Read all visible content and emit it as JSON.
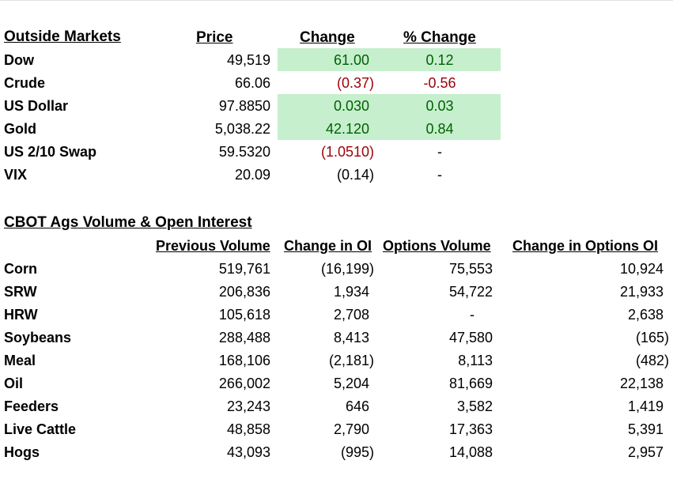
{
  "colors": {
    "positive_fill": "#c6efce",
    "positive_text": "#006100",
    "negative_text": "#9c0006"
  },
  "outside": {
    "title": "Outside Markets",
    "headers": {
      "price": "Price",
      "change": "Change",
      "pct": "% Change"
    },
    "rows": [
      {
        "name": "Dow",
        "price": "49,519",
        "change": "61.00",
        "pct": "0.12"
      },
      {
        "name": "Crude",
        "price": "66.06",
        "change": "(0.37)",
        "pct": "-0.56"
      },
      {
        "name": "US Dollar",
        "price": "97.8850",
        "change": "0.030",
        "pct": "0.03"
      },
      {
        "name": "Gold",
        "price": "5,038.22",
        "change": "42.120",
        "pct": "0.84"
      },
      {
        "name": "US 2/10 Swap",
        "price": "59.5320",
        "change": "(1.0510)",
        "pct": "-"
      },
      {
        "name": "VIX",
        "price": "20.09",
        "change": "(0.14)",
        "pct": "-"
      }
    ]
  },
  "cbot": {
    "title": "CBOT Ags Volume & Open Interest",
    "headers": {
      "prev_vol": "Previous Volume",
      "chg_oi": "Change in OI",
      "opt_vol": "Options Volume",
      "chg_opt_oi": "Change in Options OI"
    },
    "rows": [
      {
        "name": "Corn",
        "prev_vol": "519,761",
        "chg_oi": "(16,199)",
        "opt_vol": "75,553",
        "chg_opt_oi": "10,924"
      },
      {
        "name": "SRW",
        "prev_vol": "206,836",
        "chg_oi": "1,934",
        "opt_vol": "54,722",
        "chg_opt_oi": "21,933"
      },
      {
        "name": "HRW",
        "prev_vol": "105,618",
        "chg_oi": "2,708",
        "opt_vol": "-",
        "chg_opt_oi": "2,638"
      },
      {
        "name": "Soybeans",
        "prev_vol": "288,488",
        "chg_oi": "8,413",
        "opt_vol": "47,580",
        "chg_opt_oi": "(165)"
      },
      {
        "name": "Meal",
        "prev_vol": "168,106",
        "chg_oi": "(2,181)",
        "opt_vol": "8,113",
        "chg_opt_oi": "(482)"
      },
      {
        "name": "Oil",
        "prev_vol": "266,002",
        "chg_oi": "5,204",
        "opt_vol": "81,669",
        "chg_opt_oi": "22,138"
      },
      {
        "name": "Feeders",
        "prev_vol": "23,243",
        "chg_oi": "646",
        "opt_vol": "3,582",
        "chg_opt_oi": "1,419"
      },
      {
        "name": "Live Cattle",
        "prev_vol": "48,858",
        "chg_oi": "2,790",
        "opt_vol": "17,363",
        "chg_opt_oi": "5,391"
      },
      {
        "name": "Hogs",
        "prev_vol": "43,093",
        "chg_oi": "(995)",
        "opt_vol": "14,088",
        "chg_opt_oi": "2,957"
      }
    ]
  }
}
